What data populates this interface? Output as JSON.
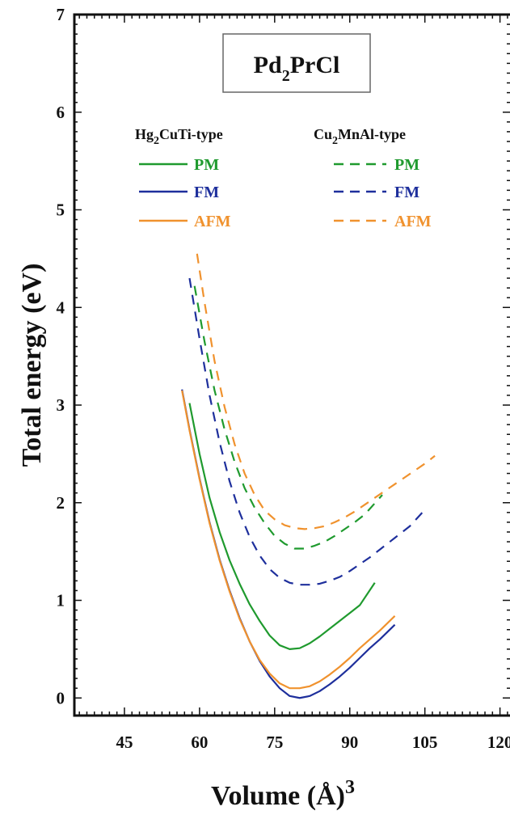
{
  "chart_data": {
    "type": "line",
    "title": "Pd2PrCl",
    "title_main": "Pd",
    "title_sub": "2",
    "title_rest": "PrCl",
    "xlabel": "Volume (Å)",
    "xlabel_sup": "3",
    "ylabel": "Total energy (eV)",
    "xlim": [
      35,
      122
    ],
    "ylim": [
      -0.18,
      7
    ],
    "xticks": [
      45,
      60,
      75,
      90,
      105,
      120
    ],
    "xtick_labels": [
      "45",
      "60",
      "75",
      "90",
      "105",
      "120"
    ],
    "yticks": [
      0,
      1,
      2,
      3,
      4,
      5,
      6,
      7
    ],
    "ytick_labels": [
      "0",
      "1",
      "2",
      "3",
      "4",
      "5",
      "6",
      "7"
    ],
    "grid": false,
    "legend_placement": "top",
    "legend_groups": [
      {
        "header": "Hg",
        "header_sub": "2",
        "header_rest": "CuTi-type",
        "style": "solid"
      },
      {
        "header": "Cu",
        "header_sub": "2",
        "header_rest": "MnAl-type",
        "style": "dashed"
      }
    ],
    "series": [
      {
        "name": "PM",
        "group": "Hg2CuTi-type",
        "style": "solid",
        "color": "#1f9a2e",
        "x": [
          58,
          60,
          62,
          64,
          66,
          68,
          70,
          72,
          74,
          76,
          78,
          80,
          82,
          84,
          86,
          88,
          90,
          92,
          95
        ],
        "y": [
          3.02,
          2.5,
          2.05,
          1.7,
          1.41,
          1.17,
          0.96,
          0.79,
          0.64,
          0.54,
          0.5,
          0.51,
          0.56,
          0.63,
          0.71,
          0.79,
          0.87,
          0.95,
          1.18
        ]
      },
      {
        "name": "FM",
        "group": "Hg2CuTi-type",
        "style": "solid",
        "color": "#1e2f9c",
        "x": [
          56.5,
          58,
          60,
          62,
          64,
          66,
          68,
          70,
          72,
          74,
          76,
          78,
          80,
          82,
          84,
          86,
          88,
          90,
          92,
          94,
          96,
          99
        ],
        "y": [
          3.16,
          2.75,
          2.25,
          1.8,
          1.42,
          1.1,
          0.82,
          0.58,
          0.38,
          0.22,
          0.1,
          0.02,
          0.0,
          0.02,
          0.07,
          0.14,
          0.22,
          0.31,
          0.41,
          0.51,
          0.6,
          0.75
        ]
      },
      {
        "name": "AFM",
        "group": "Hg2CuTi-type",
        "style": "solid",
        "color": "#f0922e",
        "x": [
          56.5,
          58,
          60,
          62,
          64,
          66,
          68,
          70,
          72,
          74,
          76,
          78,
          80,
          82,
          84,
          86,
          88,
          90,
          92,
          94,
          96,
          99
        ],
        "y": [
          3.15,
          2.74,
          2.24,
          1.79,
          1.41,
          1.09,
          0.81,
          0.58,
          0.39,
          0.25,
          0.15,
          0.1,
          0.1,
          0.12,
          0.17,
          0.24,
          0.32,
          0.41,
          0.51,
          0.6,
          0.69,
          0.84
        ]
      },
      {
        "name": "PM",
        "group": "Cu2MnAl-type",
        "style": "dashed",
        "color": "#1f9a2e",
        "x": [
          59,
          61,
          63,
          65,
          67,
          69,
          71,
          73,
          75,
          77,
          79,
          81,
          83,
          85,
          87,
          89,
          91,
          93,
          96.5
        ],
        "y": [
          4.22,
          3.65,
          3.15,
          2.75,
          2.42,
          2.15,
          1.95,
          1.79,
          1.66,
          1.58,
          1.53,
          1.53,
          1.56,
          1.6,
          1.66,
          1.73,
          1.8,
          1.88,
          2.08
        ]
      },
      {
        "name": "FM",
        "group": "Cu2MnAl-type",
        "style": "dashed",
        "color": "#1e2f9c",
        "x": [
          58,
          60,
          62,
          64,
          66,
          68,
          70,
          72,
          74,
          76,
          78,
          80,
          82,
          84,
          86,
          88,
          90,
          92,
          94,
          96,
          98,
          100,
          102,
          104.5
        ],
        "y": [
          4.3,
          3.68,
          3.1,
          2.62,
          2.22,
          1.9,
          1.65,
          1.46,
          1.32,
          1.23,
          1.18,
          1.16,
          1.16,
          1.17,
          1.2,
          1.24,
          1.3,
          1.37,
          1.44,
          1.52,
          1.6,
          1.68,
          1.76,
          1.9
        ]
      },
      {
        "name": "AFM",
        "group": "Cu2MnAl-type",
        "style": "dashed",
        "color": "#f0922e",
        "x": [
          59.5,
          61,
          63,
          65,
          67,
          69,
          71,
          73,
          75,
          77,
          79,
          81,
          83,
          85,
          87,
          89,
          91,
          93,
          95,
          97,
          99,
          101,
          103,
          105,
          107
        ],
        "y": [
          4.55,
          4.05,
          3.45,
          2.98,
          2.6,
          2.3,
          2.08,
          1.92,
          1.83,
          1.77,
          1.74,
          1.73,
          1.74,
          1.76,
          1.8,
          1.85,
          1.91,
          1.98,
          2.05,
          2.12,
          2.19,
          2.26,
          2.33,
          2.4,
          2.48
        ]
      }
    ]
  }
}
